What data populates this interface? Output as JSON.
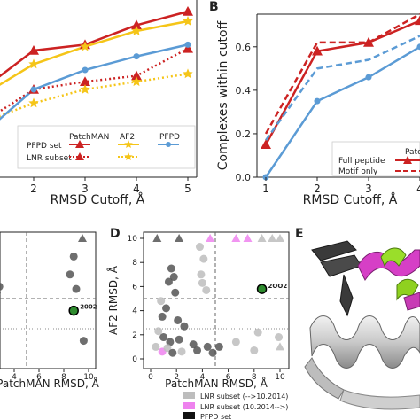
{
  "panels": {
    "B": "B",
    "D": "D",
    "E": "E"
  },
  "colors": {
    "patchman": "#cc2222",
    "af2": "#f5c518",
    "pfpd": "#5b9bd5",
    "lnr_old": "#bdbdbd",
    "lnr_new": "#ee82ee",
    "pfpd_set": "#1a1a1a",
    "dark_point": "#555555",
    "highlight": "#2e8b2e"
  },
  "chart_data": [
    {
      "id": "A",
      "type": "line",
      "xlabel": "RMSD Cutoff, Å",
      "x": [
        1,
        2,
        3,
        4,
        5
      ],
      "x_ticks": [
        "2",
        "3",
        "4",
        "5"
      ],
      "series": [
        {
          "name": "PatchMAN",
          "subset": "PFPD set",
          "values": [
            0.45,
            0.65,
            0.68,
            0.78,
            0.85
          ]
        },
        {
          "name": "PatchMAN",
          "subset": "LNR subset",
          "values": [
            0.28,
            0.45,
            0.49,
            0.52,
            0.66
          ]
        },
        {
          "name": "AF2",
          "subset": "PFPD set",
          "values": [
            0.42,
            0.58,
            0.67,
            0.75,
            0.8
          ]
        },
        {
          "name": "AF2",
          "subset": "LNR subset",
          "values": [
            0.28,
            0.38,
            0.45,
            0.49,
            0.53
          ]
        },
        {
          "name": "PFPD",
          "subset": "PFPD set",
          "values": [
            0.22,
            0.45,
            0.55,
            0.62,
            0.68
          ]
        }
      ],
      "legend": {
        "rows": [
          "PFPD set",
          "LNR subset"
        ],
        "columns": [
          "PatchMAN",
          "AF2",
          "PFPD"
        ]
      }
    },
    {
      "id": "B",
      "type": "line",
      "ylabel": "Complexes within cutoff",
      "xlabel": "RMSD Cutoff, Å",
      "x": [
        1,
        2,
        3,
        4
      ],
      "x_ticks": [
        "1",
        "2",
        "3",
        "4"
      ],
      "y_ticks": [
        "0.0",
        "0.2",
        "0.4",
        "0.6"
      ],
      "ylim": [
        0,
        0.75
      ],
      "series": [
        {
          "name": "Full peptide",
          "group": "PatchMAN",
          "values": [
            0.15,
            0.58,
            0.62,
            0.72
          ]
        },
        {
          "name": "Motif only",
          "group": "PatchMAN",
          "values": [
            0.2,
            0.62,
            0.62,
            0.75
          ]
        },
        {
          "name": "Full peptide",
          "group": "PFPD",
          "values": [
            0.0,
            0.35,
            0.46,
            0.6
          ]
        },
        {
          "name": "Motif only",
          "group": "PFPD",
          "values": [
            0.17,
            0.5,
            0.54,
            0.65
          ]
        }
      ],
      "legend": {
        "header": "Patch",
        "entries": [
          "Full peptide",
          "Motif only"
        ]
      }
    },
    {
      "id": "C",
      "type": "scatter",
      "xlabel": "PatchMAN RMSD, Å",
      "x_ticks": [
        "4",
        "6",
        "8",
        "10"
      ],
      "annotation": "2002",
      "points": [
        {
          "x": 0.5,
          "y": 10,
          "marker": "triangle"
        },
        {
          "x": 9.5,
          "y": 10,
          "marker": "triangle"
        },
        {
          "x": 2.0,
          "y": 8.5
        },
        {
          "x": 2.2,
          "y": 8.0
        },
        {
          "x": 2.5,
          "y": 7.5
        },
        {
          "x": 2.4,
          "y": 6.8
        },
        {
          "x": 2.8,
          "y": 6.0
        },
        {
          "x": 2.6,
          "y": 5.5
        },
        {
          "x": 8.8,
          "y": 8.5
        },
        {
          "x": 8.5,
          "y": 7.0
        },
        {
          "x": 9.0,
          "y": 5.8
        },
        {
          "x": 8.8,
          "y": 4.0,
          "highlight": true
        },
        {
          "x": 9.6,
          "y": 1.5
        }
      ]
    },
    {
      "id": "D",
      "type": "scatter",
      "xlabel": "PatchMAN RMSD, Å",
      "ylabel": "AF2 RMSD, Å",
      "x_ticks": [
        "0",
        "2",
        "4",
        "6",
        "8",
        "10"
      ],
      "y_ticks": [
        "0",
        "2",
        "4",
        "6",
        "8",
        "10"
      ],
      "xlim": [
        0,
        10.5
      ],
      "ylim": [
        0,
        10.5
      ],
      "cutoff_lines": {
        "x": [
          2.5,
          5
        ],
        "y": [
          2.5,
          5
        ]
      },
      "annotation": "2OO2",
      "legend": [
        {
          "label": "LNR subset (-->10.2014)",
          "color_key": "lnr_old"
        },
        {
          "label": "LNR subset (10.2014-->)",
          "color_key": "lnr_new"
        },
        {
          "label": "PFPD set",
          "color_key": "pfpd_set"
        }
      ],
      "points": [
        {
          "x": 0.5,
          "y": 10,
          "set": "dark",
          "marker": "triangle"
        },
        {
          "x": 2.2,
          "y": 10,
          "set": "dark",
          "marker": "triangle"
        },
        {
          "x": 4.6,
          "y": 10,
          "set": "lnr_new",
          "marker": "triangle"
        },
        {
          "x": 6.6,
          "y": 10,
          "set": "lnr_new",
          "marker": "triangle"
        },
        {
          "x": 7.5,
          "y": 10,
          "set": "lnr_new",
          "marker": "triangle"
        },
        {
          "x": 8.6,
          "y": 10,
          "set": "lnr_old",
          "marker": "triangle"
        },
        {
          "x": 9.4,
          "y": 10,
          "set": "lnr_old",
          "marker": "triangle"
        },
        {
          "x": 10.0,
          "y": 10,
          "set": "lnr_old",
          "marker": "triangle"
        },
        {
          "x": 3.8,
          "y": 9.3,
          "set": "lnr_old"
        },
        {
          "x": 4.1,
          "y": 8.3,
          "set": "lnr_old"
        },
        {
          "x": 1.6,
          "y": 7.5,
          "set": "dark"
        },
        {
          "x": 1.8,
          "y": 6.8,
          "set": "dark"
        },
        {
          "x": 1.4,
          "y": 6.4,
          "set": "dark"
        },
        {
          "x": 1.9,
          "y": 5.5,
          "set": "dark"
        },
        {
          "x": 3.9,
          "y": 7.0,
          "set": "lnr_old"
        },
        {
          "x": 4.0,
          "y": 6.3,
          "set": "lnr_old"
        },
        {
          "x": 4.3,
          "y": 5.7,
          "set": "lnr_old"
        },
        {
          "x": 0.8,
          "y": 4.8,
          "set": "lnr_old"
        },
        {
          "x": 1.2,
          "y": 4.2,
          "set": "dark"
        },
        {
          "x": 0.9,
          "y": 3.5,
          "set": "dark"
        },
        {
          "x": 2.1,
          "y": 3.2,
          "set": "dark"
        },
        {
          "x": 2.6,
          "y": 2.7,
          "set": "dark"
        },
        {
          "x": 0.6,
          "y": 2.3,
          "set": "lnr_old"
        },
        {
          "x": 1.0,
          "y": 1.8,
          "set": "dark"
        },
        {
          "x": 1.5,
          "y": 1.4,
          "set": "dark"
        },
        {
          "x": 2.2,
          "y": 1.6,
          "set": "dark"
        },
        {
          "x": 3.3,
          "y": 1.2,
          "set": "dark"
        },
        {
          "x": 4.4,
          "y": 1.0,
          "set": "dark"
        },
        {
          "x": 0.4,
          "y": 1.0,
          "set": "lnr_old"
        },
        {
          "x": 0.9,
          "y": 0.6,
          "set": "lnr_new"
        },
        {
          "x": 1.3,
          "y": 0.9,
          "set": "lnr_old"
        },
        {
          "x": 1.7,
          "y": 0.5,
          "set": "dark"
        },
        {
          "x": 2.4,
          "y": 0.6,
          "set": "lnr_old"
        },
        {
          "x": 3.6,
          "y": 0.7,
          "set": "dark"
        },
        {
          "x": 4.8,
          "y": 0.5,
          "set": "dark"
        },
        {
          "x": 5.3,
          "y": 1.0,
          "set": "dark"
        },
        {
          "x": 6.6,
          "y": 1.4,
          "set": "lnr_old"
        },
        {
          "x": 8.0,
          "y": 0.7,
          "set": "lnr_old"
        },
        {
          "x": 9.9,
          "y": 1.8,
          "set": "lnr_old"
        },
        {
          "x": 10.0,
          "y": 1.0,
          "set": "lnr_old",
          "marker": "triangle"
        },
        {
          "x": 8.3,
          "y": 2.2,
          "set": "lnr_old"
        },
        {
          "x": 8.6,
          "y": 5.8,
          "set": "dark",
          "highlight": true
        }
      ]
    }
  ]
}
